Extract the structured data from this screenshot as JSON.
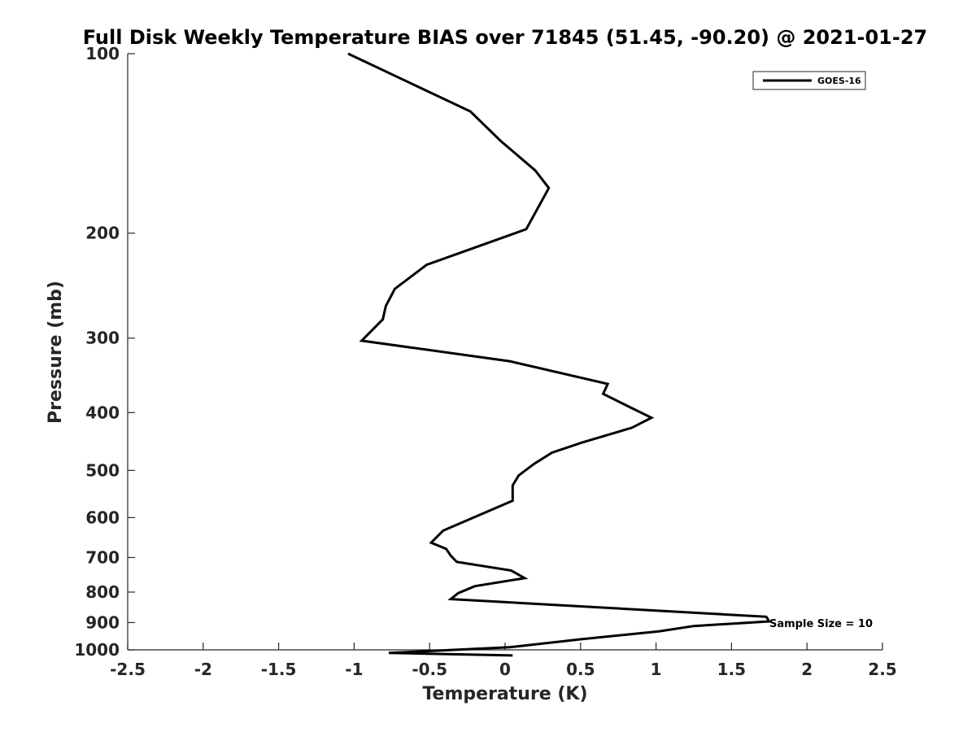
{
  "chart_data": {
    "type": "line",
    "title": "Full Disk Weekly Temperature BIAS over 71845 (51.45, -90.20) @ 2021-01-27",
    "xlabel": "Temperature (K)",
    "ylabel": "Pressure (mb)",
    "xlim": [
      -2.5,
      2.5
    ],
    "ylim": [
      1000,
      100
    ],
    "y_scale": "log",
    "y_reversed": true,
    "grid": false,
    "x_ticks": [
      -2.5,
      -2,
      -1.5,
      -1,
      -0.5,
      0,
      0.5,
      1,
      1.5,
      2,
      2.5
    ],
    "x_tick_labels": [
      "-2.5",
      "-2",
      "-1.5",
      "-1",
      "-0.5",
      "0",
      "0.5",
      "1",
      "1.5",
      "2",
      "2.5"
    ],
    "y_ticks": [
      100,
      200,
      300,
      400,
      500,
      600,
      700,
      800,
      900,
      1000
    ],
    "y_tick_labels": [
      "100",
      "200",
      "300",
      "400",
      "500",
      "600",
      "700",
      "800",
      "900",
      "1000"
    ],
    "legend": {
      "position": "top-right",
      "entries": [
        "GOES-16"
      ]
    },
    "annotation": "Sample Size = 10",
    "series": [
      {
        "name": "GOES-16",
        "color": "#000000",
        "x": [
          -1.04,
          -0.23,
          -0.03,
          0.2,
          0.29,
          0.14,
          -0.52,
          -0.73,
          -0.79,
          -0.81,
          -0.95,
          0.03,
          0.68,
          0.65,
          0.83,
          0.97,
          0.84,
          0.51,
          0.31,
          0.19,
          0.09,
          0.05,
          0.05,
          -0.23,
          -0.41,
          -0.49,
          -0.39,
          -0.36,
          -0.32,
          0.04,
          0.13,
          -0.2,
          -0.31,
          -0.36,
          1.73,
          1.75,
          1.25,
          1.02,
          0.5,
          0.03,
          -0.77,
          0.05
        ],
        "y": [
          100,
          125,
          140,
          157,
          168,
          197,
          226,
          248,
          265,
          279,
          303,
          328,
          358,
          372,
          392,
          408,
          424,
          449,
          467,
          488,
          510,
          530,
          562,
          603,
          631,
          661,
          677,
          695,
          712,
          736,
          758,
          782,
          803,
          822,
          880,
          896,
          912,
          931,
          960,
          990,
          1012,
          1022
        ]
      }
    ]
  }
}
